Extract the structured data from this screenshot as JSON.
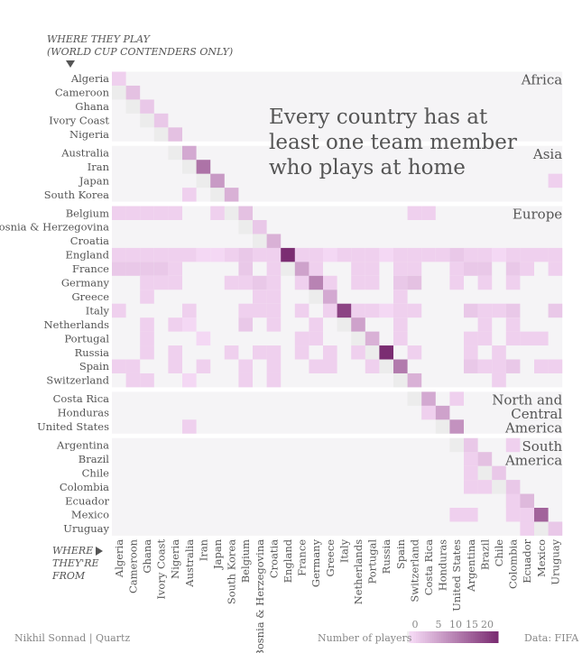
{
  "header": {
    "where_play_line1": "WHERE THEY PLAY",
    "where_play_line2": "(WORLD CUP CONTENDERS ONLY)",
    "where_from_line1": "WHERE",
    "where_from_line2": "THEY'RE",
    "where_from_line3": "FROM"
  },
  "title": "Every country has at least one team member who plays at home",
  "footer": {
    "credit": "Nikhil Sonnad | Quartz",
    "data_source": "Data: FIFA",
    "legend_label": "Number of players",
    "legend_ticks": [
      "0",
      "5",
      "10",
      "15",
      "20"
    ]
  },
  "colors": {
    "band_background": "#f5f4f6",
    "diagonal_fill": "#ececec",
    "low": "#f4d8f4",
    "high": "#7b2d72"
  },
  "chart_data": {
    "type": "heatmap",
    "title": "Every country has at least one team member who plays at home",
    "xlabel": "WHERE THEY'RE FROM",
    "ylabel": "WHERE THEY PLAY (WORLD CUP CONTENDERS ONLY)",
    "value_range": [
      0,
      23
    ],
    "region_groups": [
      {
        "name": "Africa",
        "countries": [
          "Algeria",
          "Cameroon",
          "Ghana",
          "Ivory Coast",
          "Nigeria"
        ]
      },
      {
        "name": "Asia",
        "countries": [
          "Australia",
          "Iran",
          "Japan",
          "South Korea"
        ]
      },
      {
        "name": "Europe",
        "countries": [
          "Belgium",
          "Bosnia & Herzegovina",
          "Croatia",
          "England",
          "France",
          "Germany",
          "Greece",
          "Italy",
          "Netherlands",
          "Portugal",
          "Russia",
          "Spain",
          "Switzerland"
        ]
      },
      {
        "name": "North and Central America",
        "label_lines": [
          "North and",
          "Central",
          "America"
        ],
        "countries": [
          "Costa Rica",
          "Honduras",
          "United States"
        ]
      },
      {
        "name": "South America",
        "label_lines": [
          "South",
          "America"
        ],
        "countries": [
          "Argentina",
          "Brazil",
          "Chile",
          "Colombia",
          "Ecuador",
          "Mexico",
          "Uruguay"
        ]
      }
    ],
    "countries": [
      "Algeria",
      "Cameroon",
      "Ghana",
      "Ivory Coast",
      "Nigeria",
      "Australia",
      "Iran",
      "Japan",
      "South Korea",
      "Belgium",
      "Bosnia & Herzegovina",
      "Croatia",
      "England",
      "France",
      "Germany",
      "Greece",
      "Italy",
      "Netherlands",
      "Portugal",
      "Russia",
      "Spain",
      "Switzerland",
      "Costa Rica",
      "Honduras",
      "United States",
      "Argentina",
      "Brazil",
      "Chile",
      "Colombia",
      "Ecuador",
      "Mexico",
      "Uruguay"
    ],
    "x_tick_labels": [
      "Algeria",
      "Cameroon",
      "Ghana",
      "Ivory Coast",
      "Nigeria",
      "Australia",
      "Iran",
      "Japan",
      "South Korea",
      "Belgium",
      "Bosnia & Herzegovina",
      "Croatia",
      "England",
      "France",
      "Germany",
      "Greece",
      "Italy",
      "Netherlands",
      "Portugal",
      "Russia",
      "Spain",
      "Switzerland",
      "Costa Rica",
      "Honduras",
      "United States",
      "Argentina",
      "Brazil",
      "Chile",
      "Colombia",
      "Ecuador",
      "Mexico",
      "Uruguay"
    ],
    "y_tick_labels": [
      "Algeria",
      "Cameroon",
      "Ghana",
      "Ivory Coast",
      "Nigeria",
      "Australia",
      "Iran",
      "Japan",
      "South Korea",
      "Belgium",
      "Bosnia & Herzegovina",
      "Croatia",
      "England",
      "France",
      "Germany",
      "Greece",
      "Italy",
      "Netherlands",
      "Portugal",
      "Russia",
      "Spain",
      "Switzerland",
      "Costa Rica",
      "Honduras",
      "United States",
      "Argentina",
      "Brazil",
      "Chile",
      "Colombia",
      "Ecuador",
      "Mexico",
      "Uruguay"
    ],
    "home_counts": [
      2,
      4,
      3,
      3,
      4,
      7,
      14,
      9,
      6,
      4,
      3,
      6,
      23,
      8,
      12,
      7,
      20,
      8,
      6,
      23,
      13,
      6,
      7,
      8,
      10,
      3,
      4,
      3,
      3,
      5,
      16,
      3
    ],
    "cells": [
      [
        12,
        0,
        2
      ],
      [
        12,
        1,
        2
      ],
      [
        12,
        2,
        2
      ],
      [
        12,
        3,
        2
      ],
      [
        12,
        4,
        2
      ],
      [
        12,
        5,
        2
      ],
      [
        12,
        6,
        1
      ],
      [
        12,
        7,
        1
      ],
      [
        12,
        8,
        2
      ],
      [
        12,
        9,
        3
      ],
      [
        12,
        10,
        2
      ],
      [
        12,
        11,
        2
      ],
      [
        12,
        13,
        2
      ],
      [
        12,
        14,
        2
      ],
      [
        12,
        15,
        1
      ],
      [
        12,
        16,
        2
      ],
      [
        12,
        17,
        2
      ],
      [
        12,
        18,
        2
      ],
      [
        12,
        19,
        1
      ],
      [
        12,
        20,
        2
      ],
      [
        12,
        21,
        2
      ],
      [
        12,
        22,
        2
      ],
      [
        12,
        23,
        2
      ],
      [
        12,
        24,
        3
      ],
      [
        12,
        25,
        2
      ],
      [
        12,
        26,
        2
      ],
      [
        12,
        27,
        1
      ],
      [
        12,
        28,
        2
      ],
      [
        12,
        29,
        2
      ],
      [
        12,
        30,
        2
      ],
      [
        12,
        31,
        2
      ],
      [
        13,
        0,
        3
      ],
      [
        13,
        1,
        3
      ],
      [
        13,
        2,
        3
      ],
      [
        13,
        3,
        3
      ],
      [
        13,
        4,
        2
      ],
      [
        13,
        9,
        3
      ],
      [
        13,
        11,
        2
      ],
      [
        13,
        14,
        2
      ],
      [
        13,
        17,
        2
      ],
      [
        13,
        18,
        2
      ],
      [
        13,
        20,
        2
      ],
      [
        13,
        21,
        2
      ],
      [
        13,
        24,
        2
      ],
      [
        13,
        25,
        3
      ],
      [
        13,
        26,
        3
      ],
      [
        13,
        28,
        3
      ],
      [
        13,
        29,
        2
      ],
      [
        13,
        31,
        2
      ],
      [
        14,
        2,
        2
      ],
      [
        14,
        3,
        2
      ],
      [
        14,
        4,
        2
      ],
      [
        14,
        8,
        2
      ],
      [
        14,
        9,
        2
      ],
      [
        14,
        10,
        3
      ],
      [
        14,
        11,
        2
      ],
      [
        14,
        13,
        2
      ],
      [
        14,
        15,
        2
      ],
      [
        14,
        17,
        2
      ],
      [
        14,
        18,
        2
      ],
      [
        14,
        20,
        3
      ],
      [
        14,
        21,
        4
      ],
      [
        14,
        24,
        2
      ],
      [
        14,
        26,
        2
      ],
      [
        14,
        28,
        2
      ],
      [
        16,
        0,
        2
      ],
      [
        16,
        5,
        2
      ],
      [
        16,
        9,
        2
      ],
      [
        16,
        10,
        2
      ],
      [
        16,
        11,
        2
      ],
      [
        16,
        13,
        2
      ],
      [
        16,
        15,
        2
      ],
      [
        16,
        17,
        2
      ],
      [
        16,
        18,
        2
      ],
      [
        16,
        19,
        1
      ],
      [
        16,
        20,
        2
      ],
      [
        16,
        21,
        2
      ],
      [
        16,
        25,
        3
      ],
      [
        16,
        26,
        2
      ],
      [
        16,
        27,
        2
      ],
      [
        16,
        28,
        3
      ],
      [
        16,
        31,
        3
      ],
      [
        17,
        2,
        2
      ],
      [
        17,
        4,
        2
      ],
      [
        17,
        5,
        1
      ],
      [
        17,
        9,
        3
      ],
      [
        17,
        11,
        2
      ],
      [
        17,
        14,
        2
      ],
      [
        17,
        20,
        2
      ],
      [
        17,
        26,
        2
      ],
      [
        17,
        28,
        2
      ],
      [
        18,
        2,
        2
      ],
      [
        18,
        6,
        1
      ],
      [
        18,
        13,
        2
      ],
      [
        18,
        14,
        2
      ],
      [
        18,
        20,
        2
      ],
      [
        18,
        25,
        2
      ],
      [
        18,
        26,
        2
      ],
      [
        18,
        28,
        2
      ],
      [
        18,
        29,
        2
      ],
      [
        18,
        30,
        2
      ],
      [
        19,
        2,
        2
      ],
      [
        19,
        4,
        2
      ],
      [
        19,
        8,
        2
      ],
      [
        19,
        10,
        2
      ],
      [
        19,
        11,
        2
      ],
      [
        19,
        13,
        2
      ],
      [
        19,
        15,
        2
      ],
      [
        19,
        17,
        2
      ],
      [
        19,
        21,
        2
      ],
      [
        19,
        25,
        2
      ],
      [
        19,
        27,
        2
      ],
      [
        20,
        0,
        2
      ],
      [
        20,
        1,
        2
      ],
      [
        20,
        4,
        2
      ],
      [
        20,
        6,
        2
      ],
      [
        20,
        9,
        2
      ],
      [
        20,
        11,
        2
      ],
      [
        20,
        14,
        2
      ],
      [
        20,
        15,
        2
      ],
      [
        20,
        18,
        2
      ],
      [
        20,
        25,
        3
      ],
      [
        20,
        26,
        2
      ],
      [
        20,
        27,
        2
      ],
      [
        20,
        28,
        3
      ],
      [
        20,
        30,
        2
      ],
      [
        20,
        31,
        2
      ],
      [
        21,
        1,
        2
      ],
      [
        21,
        2,
        2
      ],
      [
        21,
        5,
        1
      ],
      [
        21,
        9,
        2
      ],
      [
        21,
        11,
        2
      ],
      [
        21,
        27,
        2
      ],
      [
        9,
        0,
        2
      ],
      [
        9,
        1,
        2
      ],
      [
        9,
        2,
        2
      ],
      [
        9,
        3,
        2
      ],
      [
        9,
        4,
        2
      ],
      [
        9,
        7,
        2
      ],
      [
        9,
        21,
        2
      ],
      [
        9,
        22,
        2
      ],
      [
        15,
        2,
        2
      ],
      [
        15,
        10,
        2
      ],
      [
        15,
        11,
        2
      ],
      [
        15,
        20,
        2
      ],
      [
        8,
        5,
        2
      ],
      [
        7,
        31,
        2
      ],
      [
        24,
        5,
        2
      ],
      [
        26,
        25,
        2
      ],
      [
        27,
        25,
        2
      ],
      [
        28,
        25,
        2
      ],
      [
        25,
        28,
        2
      ],
      [
        28,
        26,
        2
      ],
      [
        29,
        28,
        2
      ],
      [
        30,
        28,
        2
      ],
      [
        30,
        29,
        2
      ],
      [
        31,
        29,
        2
      ],
      [
        30,
        24,
        2
      ],
      [
        30,
        25,
        2
      ],
      [
        22,
        24,
        2
      ],
      [
        23,
        22,
        2
      ]
    ]
  }
}
